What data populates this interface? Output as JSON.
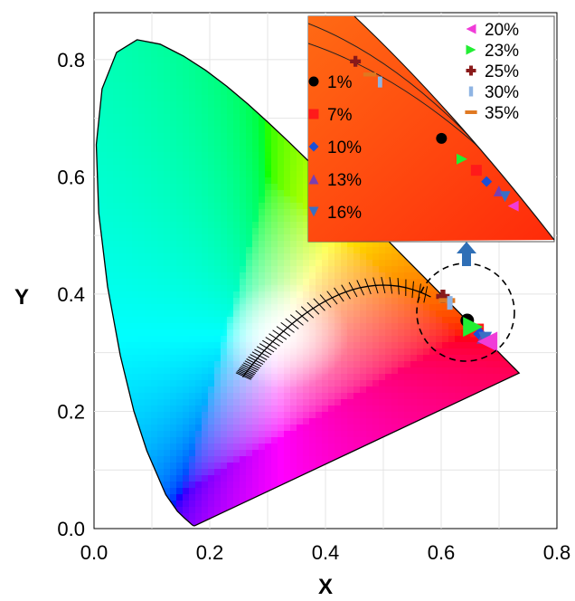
{
  "chart_data": {
    "type": "scatter",
    "title": "",
    "xlabel": "X",
    "ylabel": "Y",
    "xlim": [
      0.0,
      0.8
    ],
    "ylim": [
      0.0,
      0.88
    ],
    "x_ticks": [
      "0.0",
      "0.2",
      "0.4",
      "0.6",
      "0.8"
    ],
    "y_ticks": [
      "0.0",
      "0.2",
      "0.4",
      "0.6",
      "0.8"
    ],
    "grid": true,
    "background": "CIE 1931 chromaticity diagram with Planckian locus",
    "series": [
      {
        "name": "1%",
        "marker": "circle",
        "color": "#000000",
        "x": 0.645,
        "y": 0.355
      },
      {
        "name": "7%",
        "marker": "square",
        "color": "#ff1a1a",
        "x": 0.662,
        "y": 0.338
      },
      {
        "name": "10%",
        "marker": "diamond",
        "color": "#1a4fd6",
        "x": 0.667,
        "y": 0.332
      },
      {
        "name": "13%",
        "marker": "triangle-up",
        "color": "#7a3fb0",
        "x": 0.673,
        "y": 0.327
      },
      {
        "name": "16%",
        "marker": "triangle-down",
        "color": "#3a6fc4",
        "x": 0.676,
        "y": 0.324
      },
      {
        "name": "20%",
        "marker": "triangle-left",
        "color": "#f03cd8",
        "x": 0.68,
        "y": 0.319
      },
      {
        "name": "23%",
        "marker": "triangle-right",
        "color": "#22ee33",
        "x": 0.655,
        "y": 0.344
      },
      {
        "name": "25%",
        "marker": "cross",
        "color": "#8a1a1a",
        "x": 0.603,
        "y": 0.396
      },
      {
        "name": "30%",
        "marker": "bar",
        "color": "#8fb4e3",
        "x": 0.615,
        "y": 0.385
      },
      {
        "name": "35%",
        "marker": "dash",
        "color": "#e07820",
        "x": 0.61,
        "y": 0.389
      }
    ],
    "legend_placement": "inset"
  },
  "icons": {
    "zoom_arrow": "up-arrow-icon"
  }
}
